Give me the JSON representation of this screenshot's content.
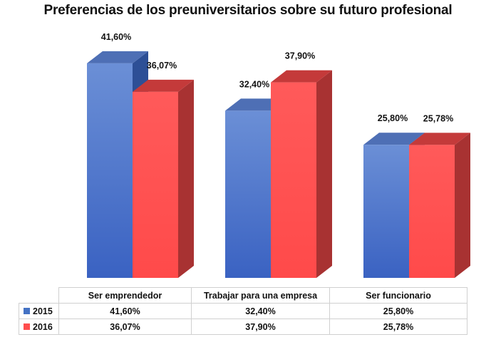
{
  "chart_data": {
    "type": "bar",
    "title": "Preferencias de los preuniversitarios sobre su futuro profesional",
    "categories": [
      "Ser emprendedor",
      "Trabajar para una empresa",
      "Ser funcionario"
    ],
    "series": [
      {
        "name": "2015",
        "values": [
          41.6,
          32.4,
          25.8
        ],
        "labels": [
          "41,60%",
          "32,40%",
          "25,80%"
        ],
        "color": "#4472c4"
      },
      {
        "name": "2016",
        "values": [
          36.07,
          37.9,
          25.78
        ],
        "labels": [
          "36,07%",
          "37,90%",
          "25,78%"
        ],
        "color": "#ff4d4d"
      }
    ],
    "ylim": [
      0,
      45
    ],
    "grid": false,
    "legend": "data-table-below",
    "three_d": true
  }
}
